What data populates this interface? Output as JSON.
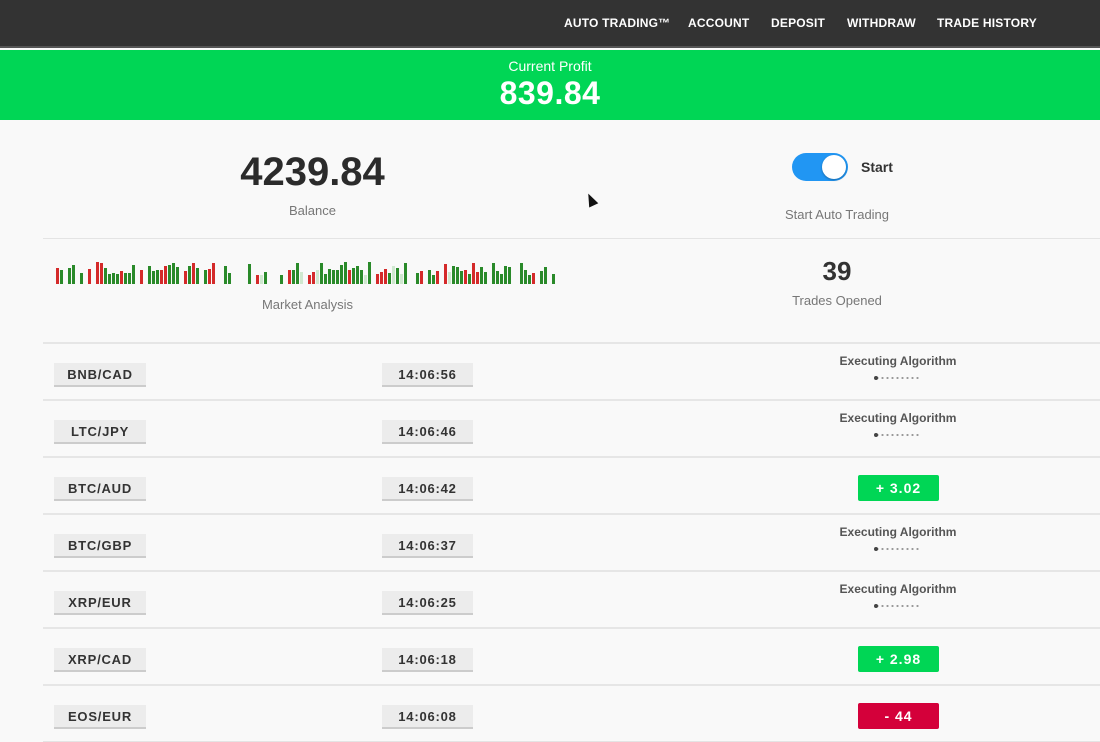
{
  "nav": {
    "items": [
      "AUTO TRADING™",
      "ACCOUNT",
      "DEPOSIT",
      "WITHDRAW",
      "TRADE HISTORY"
    ]
  },
  "profit": {
    "label": "Current Profit",
    "value": "839.84",
    "color": "#00d655"
  },
  "balance": {
    "value": "4239.84",
    "label": "Balance"
  },
  "auto_trading": {
    "toggle_on": true,
    "toggle_label": "Start",
    "label": "Start Auto Trading"
  },
  "market": {
    "label": "Market Analysis",
    "colors": {
      "up": "#2a8a2a",
      "down": "#d42a2a"
    }
  },
  "trades": {
    "value": "39",
    "label": "Trades Opened"
  },
  "rows": [
    {
      "pair": "BNB/CAD",
      "time": "14:06:56",
      "status": "Executing Algorithm",
      "result": null
    },
    {
      "pair": "LTC/JPY",
      "time": "14:06:46",
      "status": "Executing Algorithm",
      "result": null
    },
    {
      "pair": "BTC/AUD",
      "time": "14:06:42",
      "status": null,
      "result": "+  3.02",
      "positive": true
    },
    {
      "pair": "BTC/GBP",
      "time": "14:06:37",
      "status": "Executing Algorithm",
      "result": null
    },
    {
      "pair": "XRP/EUR",
      "time": "14:06:25",
      "status": "Executing Algorithm",
      "result": null
    },
    {
      "pair": "XRP/CAD",
      "time": "14:06:18",
      "status": null,
      "result": "+  2.98",
      "positive": true
    },
    {
      "pair": "EOS/EUR",
      "time": "14:06:08",
      "status": null,
      "result": "-   44",
      "positive": false
    }
  ],
  "result_colors": {
    "positive": "#00d655",
    "negative": "#d4003a"
  }
}
